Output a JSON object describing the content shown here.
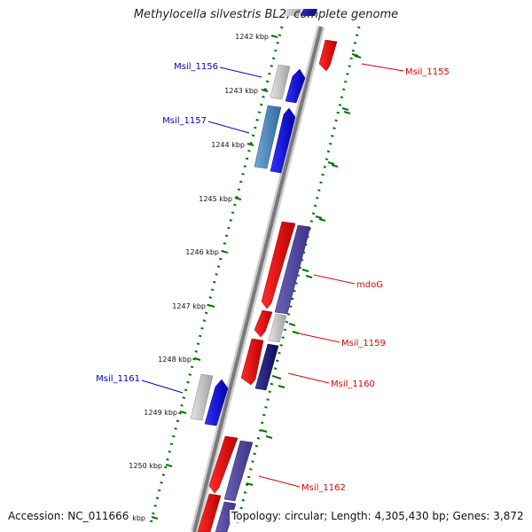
{
  "title": "Methylocella silvestris BL2, complete genome",
  "footer": {
    "accession": "Accession: NC_011666",
    "summary": "Topology: circular; Length: 4,305,430 bp; Genes: 3,872"
  },
  "ticks": [
    "1242 kbp",
    "1243 kbp",
    "1244 kbp",
    "1245 kbp",
    "1246 kbp",
    "1247 kbp",
    "1248 kbp",
    "1249 kbp",
    "1250 kbp",
    "kbp"
  ],
  "gene_labels": [
    {
      "text": "Msil_1155",
      "strand": "reverse"
    },
    {
      "text": "Msil_1156",
      "strand": "forward"
    },
    {
      "text": "Msil_1157",
      "strand": "forward"
    },
    {
      "text": "mdoG",
      "strand": "reverse"
    },
    {
      "text": "Msil_1159",
      "strand": "reverse"
    },
    {
      "text": "Msil_1160",
      "strand": "reverse"
    },
    {
      "text": "Msil_1161",
      "strand": "forward"
    },
    {
      "text": "Msil_1162",
      "strand": "reverse"
    }
  ],
  "colors": {
    "forward": "#0000cc",
    "reverse": "#dd0000",
    "gc_ring": "#007700",
    "backbone": "#808080"
  }
}
